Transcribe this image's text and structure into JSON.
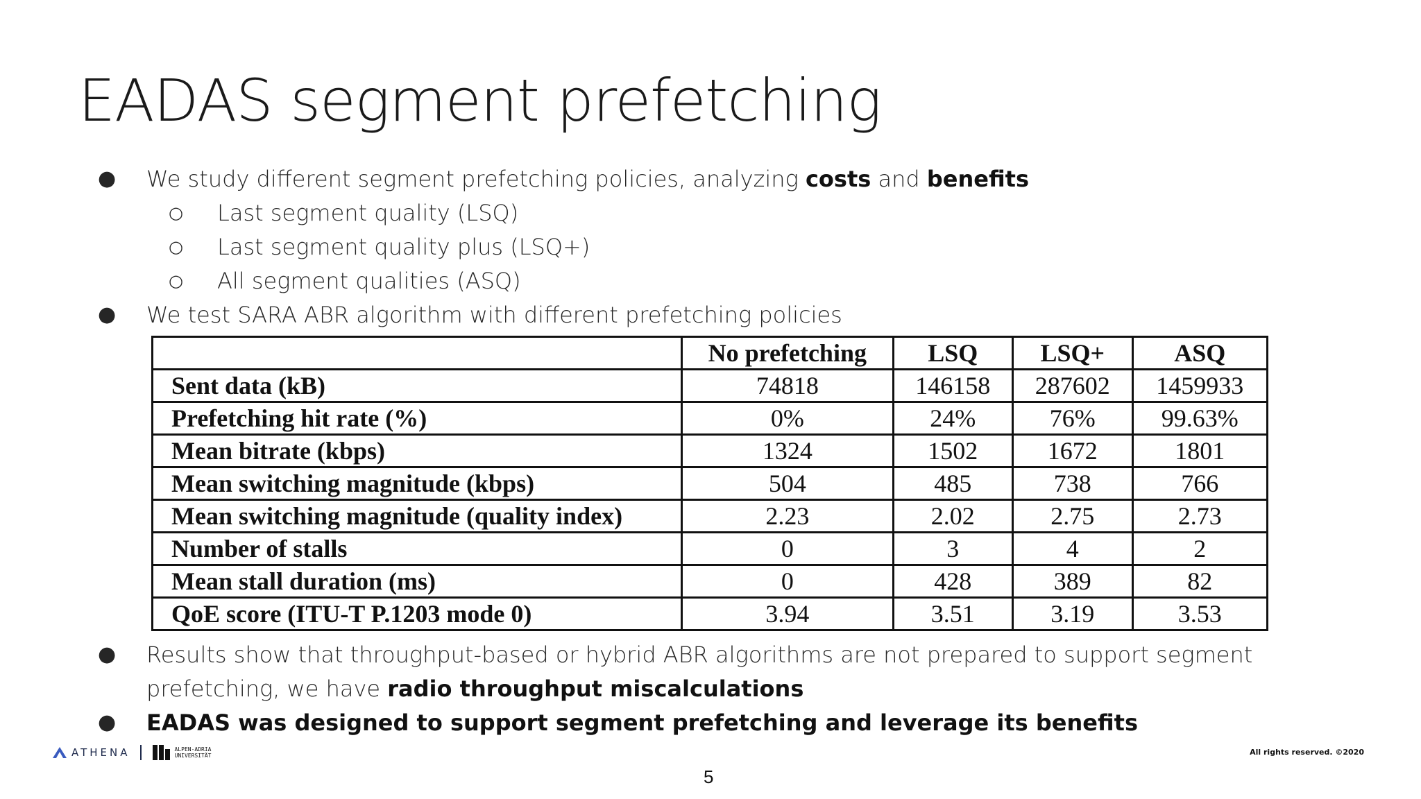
{
  "slide": {
    "title": "EADAS segment prefetching",
    "bullets": {
      "b1_pre": "We study different segment prefetching policies, analyzing ",
      "b1_bold1": "costs",
      "b1_mid": " and ",
      "b1_bold2": "benefits",
      "sub1": "Last segment quality (LSQ)",
      "sub2": "Last segment quality plus (LSQ+)",
      "sub3": "All segment qualities (ASQ)",
      "b2": "We test SARA ABR algorithm with different prefetching policies",
      "b3_line1": "Results show that throughput-based or hybrid ABR algorithms are not prepared to support segment",
      "b3_line2_pre": "prefetching, we have ",
      "b3_line2_bold": "radio throughput miscalculations",
      "b4_bold": "EADAS was designed to support segment prefetching and leverage its benefits"
    },
    "bullet_marks": {
      "filled": "●",
      "hollow": "○"
    }
  },
  "table": {
    "headers": [
      "",
      "No prefetching",
      "LSQ",
      "LSQ+",
      "ASQ"
    ],
    "rows": [
      {
        "label": "Sent data (kB)",
        "values": [
          "74818",
          "146158",
          "287602",
          "1459933"
        ]
      },
      {
        "label": "Prefetching hit rate (%)",
        "values": [
          "0%",
          "24%",
          "76%",
          "99.63%"
        ]
      },
      {
        "label": "Mean bitrate (kbps)",
        "values": [
          "1324",
          "1502",
          "1672",
          "1801"
        ]
      },
      {
        "label": "Mean switching magnitude (kbps)",
        "values": [
          "504",
          "485",
          "738",
          "766"
        ]
      },
      {
        "label": "Mean switching magnitude (quality index)",
        "values": [
          "2.23",
          "2.02",
          "2.75",
          "2.73"
        ]
      },
      {
        "label": "Number of stalls",
        "values": [
          "0",
          "3",
          "4",
          "2"
        ]
      },
      {
        "label": "Mean stall duration (ms)",
        "values": [
          "0",
          "428",
          "389",
          "82"
        ]
      },
      {
        "label": "QoE score (ITU-T P.1203 mode 0)",
        "values": [
          "3.94",
          "3.51",
          "3.19",
          "3.53"
        ]
      }
    ]
  },
  "footer": {
    "athena": "ATHENA",
    "aau_line1": "ALPEN-ADRIA",
    "aau_line2": "UNIVERSITÄT",
    "rights": "All rights reserved. ©2020",
    "page_number": "5"
  },
  "colors": {
    "text": "#262626",
    "brand_navy": "#1f2b4d"
  }
}
